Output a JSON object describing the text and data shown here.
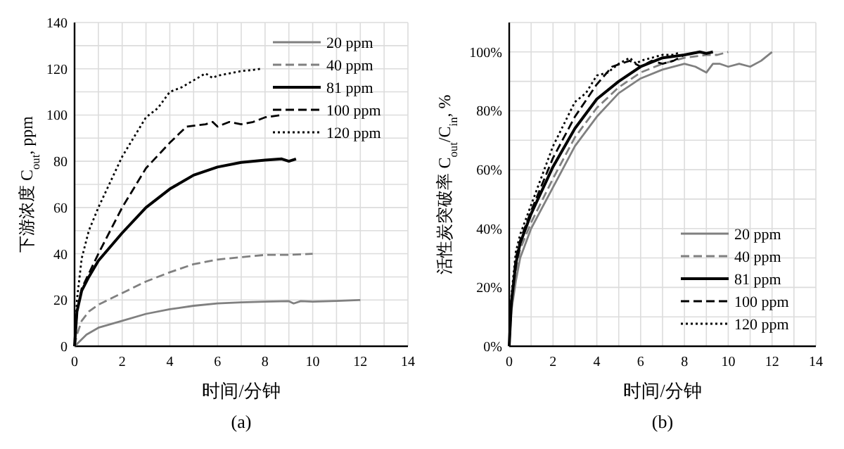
{
  "chart_data": [
    {
      "type": "line",
      "title": "(a)",
      "xlabel": "时间/分钟",
      "ylabel": "下游浓度 C$_{out}$, ppm",
      "xlim": [
        0,
        14
      ],
      "xticks": [
        0,
        {
          "value": 1,
          "label": null
        },
        2,
        {
          "value": 3,
          "label": null
        },
        4,
        {
          "value": 5,
          "label": null
        },
        6,
        {
          "value": 7,
          "label": null
        },
        8,
        {
          "value": 9,
          "label": null
        },
        10,
        {
          "value": 11,
          "label": null
        },
        12,
        {
          "value": 13,
          "label": null
        },
        14
      ],
      "ylim": [
        0,
        140
      ],
      "yticks": [
        0,
        {
          "value": 10,
          "label": null
        },
        20,
        {
          "value": 30,
          "label": null
        },
        40,
        {
          "value": 50,
          "label": null
        },
        60,
        {
          "value": 70,
          "label": null
        },
        80,
        {
          "value": 90,
          "label": null
        },
        100,
        {
          "value": 110,
          "label": null
        },
        120,
        {
          "value": 130,
          "label": null
        },
        140
      ],
      "grid": true,
      "legend": "top right",
      "marker": "none",
      "series": [
        {
          "name": "20 ppm",
          "color": "#808080",
          "line_style": "solid",
          "x": [
            0,
            0.2,
            0.5,
            1,
            2,
            3,
            4,
            5,
            6,
            7,
            8,
            9,
            9.2,
            9.5,
            10,
            11,
            12
          ],
          "values": [
            0,
            2,
            5,
            8,
            11,
            14,
            16,
            17.5,
            18.5,
            19,
            19.3,
            19.5,
            18.5,
            19.5,
            19.3,
            19.6,
            20
          ]
        },
        {
          "name": "40 ppm",
          "color": "#808080",
          "line_style": "dashed",
          "x": [
            0,
            0.1,
            0.3,
            0.6,
            1,
            2,
            3,
            4,
            5,
            6,
            7,
            8,
            9,
            10
          ],
          "values": [
            0,
            5,
            11,
            15,
            18,
            23,
            28,
            32,
            35.5,
            37.5,
            38.5,
            39.5,
            39.5,
            40
          ]
        },
        {
          "name": "81 ppm",
          "color": "#000000",
          "line_style": "solid",
          "x": [
            0,
            0.1,
            0.3,
            0.6,
            1,
            2,
            3,
            4,
            5,
            6,
            7,
            8,
            8.7,
            9,
            9.3
          ],
          "values": [
            0,
            15,
            24,
            30,
            37,
            49,
            60,
            68,
            74,
            77.5,
            79.5,
            80.5,
            81,
            80,
            81
          ]
        },
        {
          "name": "100 ppm",
          "color": "#000000",
          "line_style": "dashed",
          "x": [
            0,
            0.1,
            0.3,
            1,
            2,
            3,
            4,
            4.7,
            5.5,
            5.8,
            6,
            6.5,
            7,
            7.5,
            8,
            8.7
          ],
          "values": [
            0,
            15,
            25,
            40,
            60,
            77,
            88,
            95,
            96,
            97,
            95,
            97,
            96,
            97,
            99,
            100
          ]
        },
        {
          "name": "120 ppm",
          "color": "#000000",
          "line_style": "dotted",
          "x": [
            0,
            0.1,
            0.3,
            0.6,
            1,
            2,
            3,
            3.5,
            4,
            4.5,
            5,
            5.5,
            5.8,
            6,
            6.5,
            7,
            7.5,
            7.8
          ],
          "values": [
            0,
            20,
            38,
            50,
            60,
            82,
            99,
            103,
            110,
            112,
            115,
            118,
            116,
            117,
            118,
            119,
            119.5,
            120
          ]
        }
      ]
    },
    {
      "type": "line",
      "title": "(b)",
      "xlabel": "时间/分钟",
      "ylabel": "活性炭突破率 C$_{out}$/C$_{in}$, %",
      "xlim": [
        0,
        14
      ],
      "xticks": [
        0,
        {
          "value": 1,
          "label": null
        },
        2,
        {
          "value": 3,
          "label": null
        },
        4,
        {
          "value": 5,
          "label": null
        },
        6,
        {
          "value": 7,
          "label": null
        },
        8,
        {
          "value": 9,
          "label": null
        },
        10,
        {
          "value": 11,
          "label": null
        },
        12,
        {
          "value": 13,
          "label": null
        },
        14
      ],
      "ylim": [
        0,
        110
      ],
      "yticks": [
        {
          "value": 0,
          "label": "0%"
        },
        {
          "value": 10,
          "label": null
        },
        {
          "value": 20,
          "label": "20%"
        },
        {
          "value": 30,
          "label": null
        },
        {
          "value": 40,
          "label": "40%"
        },
        {
          "value": 50,
          "label": null
        },
        {
          "value": 60,
          "label": "60%"
        },
        {
          "value": 70,
          "label": null
        },
        {
          "value": 80,
          "label": "80%"
        },
        {
          "value": 90,
          "label": null
        },
        {
          "value": 100,
          "label": "100%"
        },
        {
          "value": 110,
          "label": null
        }
      ],
      "grid": true,
      "legend": "bottom right",
      "marker": "none",
      "series": [
        {
          "name": "20 ppm",
          "color": "#808080",
          "line_style": "solid",
          "x": [
            0,
            0.1,
            0.3,
            0.5,
            1,
            2,
            3,
            4,
            5,
            6,
            7,
            8,
            8.5,
            9,
            9.3,
            9.6,
            10,
            10.5,
            11,
            11.5,
            12
          ],
          "values": [
            0,
            12,
            22,
            30,
            40,
            54,
            68,
            78,
            86,
            91,
            94,
            96,
            95,
            93,
            96,
            96,
            95,
            96,
            95,
            97,
            100
          ]
        },
        {
          "name": "40 ppm",
          "color": "#808080",
          "line_style": "dashed",
          "x": [
            0,
            0.1,
            0.3,
            0.5,
            1,
            2,
            3,
            4,
            5,
            6,
            7,
            8,
            9,
            9.5,
            10
          ],
          "values": [
            0,
            14,
            25,
            33,
            42,
            57,
            71,
            81,
            88,
            93,
            96,
            98,
            99,
            99,
            100
          ]
        },
        {
          "name": "81 ppm",
          "color": "#000000",
          "line_style": "solid",
          "x": [
            0,
            0.1,
            0.3,
            0.5,
            1,
            2,
            3,
            4,
            5,
            6,
            7,
            8,
            8.7,
            9,
            9.3
          ],
          "values": [
            0,
            15,
            28,
            35,
            45,
            61,
            74,
            84,
            90,
            95,
            98,
            99,
            100,
            99.5,
            100
          ]
        },
        {
          "name": "100 ppm",
          "color": "#000000",
          "line_style": "dashed",
          "x": [
            0,
            0.1,
            0.3,
            0.5,
            1,
            2,
            3,
            4,
            4.7,
            5.5,
            6,
            6.5,
            7,
            7.5,
            8,
            8.7
          ],
          "values": [
            0,
            15,
            30,
            36,
            46,
            64,
            78,
            89,
            95,
            97,
            95,
            97,
            96,
            97,
            99,
            100
          ]
        },
        {
          "name": "120 ppm",
          "color": "#000000",
          "line_style": "dotted",
          "x": [
            0,
            0.1,
            0.3,
            0.5,
            1,
            2,
            3,
            3.5,
            4,
            4.5,
            5,
            5.5,
            5.8,
            6,
            6.5,
            7,
            7.5,
            7.8
          ],
          "values": [
            0,
            17,
            32,
            38,
            48,
            68,
            83,
            86,
            92,
            93,
            96,
            98,
            96,
            97,
            98,
            99,
            99,
            100
          ]
        }
      ]
    }
  ]
}
